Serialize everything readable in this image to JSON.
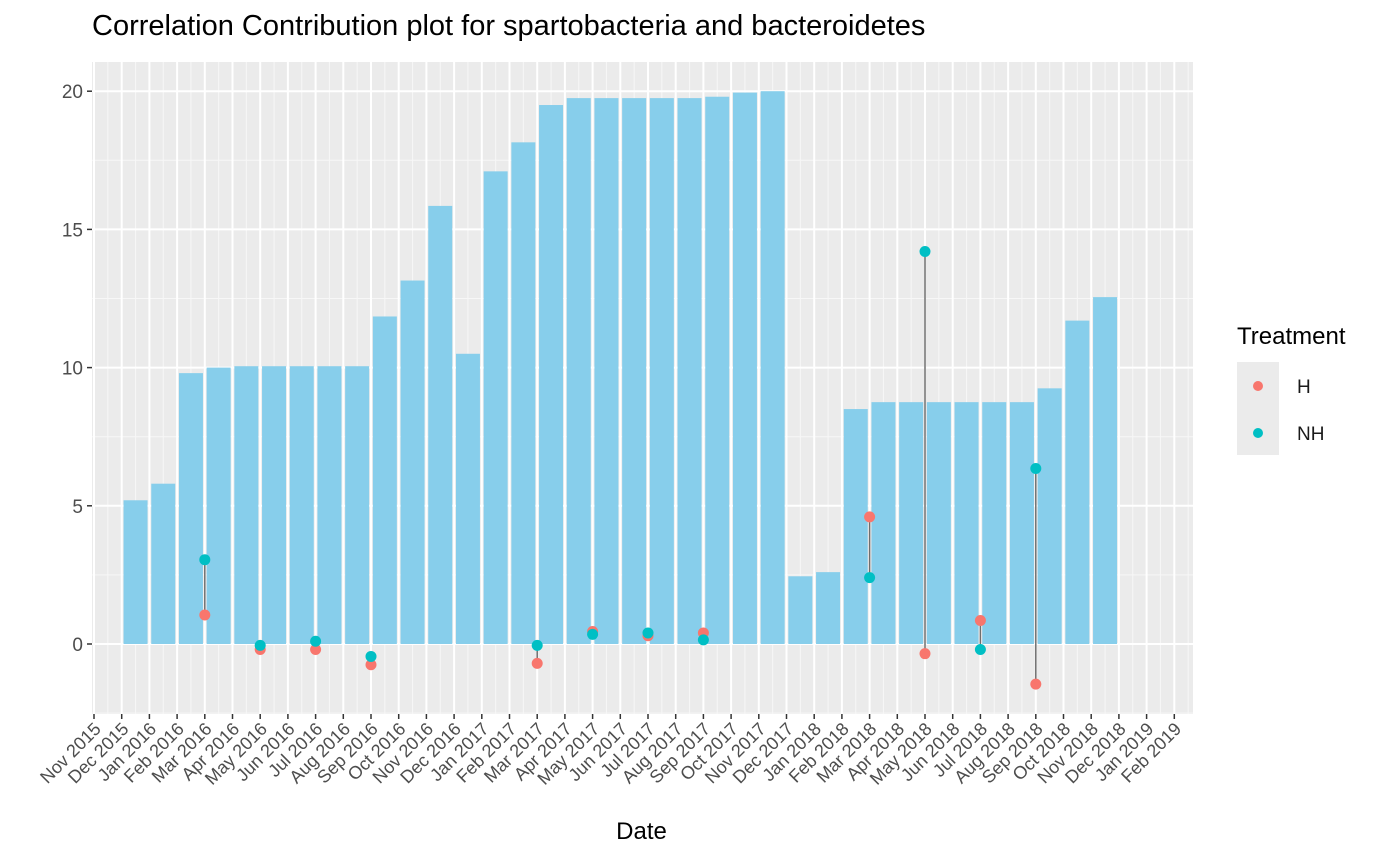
{
  "chart_data": {
    "type": "bar",
    "title": "Correlation Contribution plot for spartobacteria and bacteroidetes",
    "xlabel": "Date",
    "ylabel": "",
    "ylim": [
      -2.5,
      21
    ],
    "y_ticks": [
      0,
      5,
      10,
      15,
      20
    ],
    "grid": true,
    "bar_color": "#87CEEB",
    "x_ticks": [
      "Nov 2015",
      "Dec 2015",
      "Jan 2016",
      "Feb 2016",
      "Mar 2016",
      "Apr 2016",
      "May 2016",
      "Jun 2016",
      "Jul 2016",
      "Aug 2016",
      "Sep 2016",
      "Oct 2016",
      "Nov 2016",
      "Dec 2016",
      "Jan 2017",
      "Feb 2017",
      "Mar 2017",
      "Apr 2017",
      "May 2017",
      "Jun 2017",
      "Jul 2017",
      "Aug 2017",
      "Sep 2017",
      "Oct 2017",
      "Nov 2017",
      "Dec 2017",
      "Jan 2018",
      "Feb 2018",
      "Mar 2018",
      "Apr 2018",
      "May 2018",
      "Jun 2018",
      "Jul 2018",
      "Aug 2018",
      "Sep 2018",
      "Oct 2018",
      "Nov 2018",
      "Dec 2018",
      "Jan 2019",
      "Feb 2019"
    ],
    "bars": [
      {
        "date": "Dec 2015",
        "value": 5.2
      },
      {
        "date": "Jan 2016",
        "value": 5.8
      },
      {
        "date": "Feb 2016",
        "value": 9.8
      },
      {
        "date": "Mar 2016",
        "value": 10.0
      },
      {
        "date": "Apr 2016",
        "value": 10.05
      },
      {
        "date": "May 2016",
        "value": 10.05
      },
      {
        "date": "Jun 2016",
        "value": 10.05
      },
      {
        "date": "Jul 2016",
        "value": 10.05
      },
      {
        "date": "Aug 2016",
        "value": 10.05
      },
      {
        "date": "Sep 2016",
        "value": 11.85
      },
      {
        "date": "Oct 2016",
        "value": 13.15
      },
      {
        "date": "Nov 2016",
        "value": 15.85
      },
      {
        "date": "Dec 2016",
        "value": 10.5
      },
      {
        "date": "Jan 2017",
        "value": 17.1
      },
      {
        "date": "Feb 2017",
        "value": 18.15
      },
      {
        "date": "Mar 2017",
        "value": 19.5
      },
      {
        "date": "Apr 2017",
        "value": 19.75
      },
      {
        "date": "May 2017",
        "value": 19.75
      },
      {
        "date": "Jun 2017",
        "value": 19.75
      },
      {
        "date": "Jul 2017",
        "value": 19.75
      },
      {
        "date": "Aug 2017",
        "value": 19.75
      },
      {
        "date": "Sep 2017",
        "value": 19.8
      },
      {
        "date": "Oct 2017",
        "value": 19.95
      },
      {
        "date": "Nov 2017",
        "value": 20.0
      },
      {
        "date": "Dec 2017",
        "value": 2.45
      },
      {
        "date": "Jan 2018",
        "value": 2.6
      },
      {
        "date": "Feb 2018",
        "value": 8.5
      },
      {
        "date": "Mar 2018",
        "value": 8.75
      },
      {
        "date": "Apr 2018",
        "value": 8.75
      },
      {
        "date": "May 2018",
        "value": 8.75
      },
      {
        "date": "Jun 2018",
        "value": 8.75
      },
      {
        "date": "Jul 2018",
        "value": 8.75
      },
      {
        "date": "Aug 2018",
        "value": 8.75
      },
      {
        "date": "Sep 2018",
        "value": 9.25
      },
      {
        "date": "Oct 2018",
        "value": 11.7
      },
      {
        "date": "Nov 2018",
        "value": 12.55
      }
    ],
    "legend": {
      "title": "Treatment",
      "placement": "right",
      "entries": [
        {
          "name": "H",
          "color": "#F8766D"
        },
        {
          "name": "NH",
          "color": "#00BFC4"
        }
      ]
    },
    "series": [
      {
        "name": "H",
        "color": "#F8766D",
        "points": [
          {
            "date": "Mar 2016",
            "y": 1.05
          },
          {
            "date": "May 2016",
            "y": -0.2
          },
          {
            "date": "Jul 2016",
            "y": -0.2
          },
          {
            "date": "Sep 2016",
            "y": -0.75
          },
          {
            "date": "Mar 2017",
            "y": -0.7
          },
          {
            "date": "May 2017",
            "y": 0.45
          },
          {
            "date": "Jul 2017",
            "y": 0.3
          },
          {
            "date": "Sep 2017",
            "y": 0.4
          },
          {
            "date": "Mar 2018",
            "y": 4.6
          },
          {
            "date": "May 2018",
            "y": -0.35
          },
          {
            "date": "Jul 2018",
            "y": 0.85
          },
          {
            "date": "Sep 2018",
            "y": -1.45
          }
        ]
      },
      {
        "name": "NH",
        "color": "#00BFC4",
        "points": [
          {
            "date": "Mar 2016",
            "y": 3.05
          },
          {
            "date": "May 2016",
            "y": -0.05
          },
          {
            "date": "Jul 2016",
            "y": 0.1
          },
          {
            "date": "Sep 2016",
            "y": -0.45
          },
          {
            "date": "Mar 2017",
            "y": -0.05
          },
          {
            "date": "May 2017",
            "y": 0.35
          },
          {
            "date": "Jul 2017",
            "y": 0.4
          },
          {
            "date": "Sep 2017",
            "y": 0.15
          },
          {
            "date": "Mar 2018",
            "y": 2.4
          },
          {
            "date": "May 2018",
            "y": 14.2
          },
          {
            "date": "Jul 2018",
            "y": -0.2
          },
          {
            "date": "Sep 2018",
            "y": 6.35
          }
        ]
      }
    ]
  }
}
